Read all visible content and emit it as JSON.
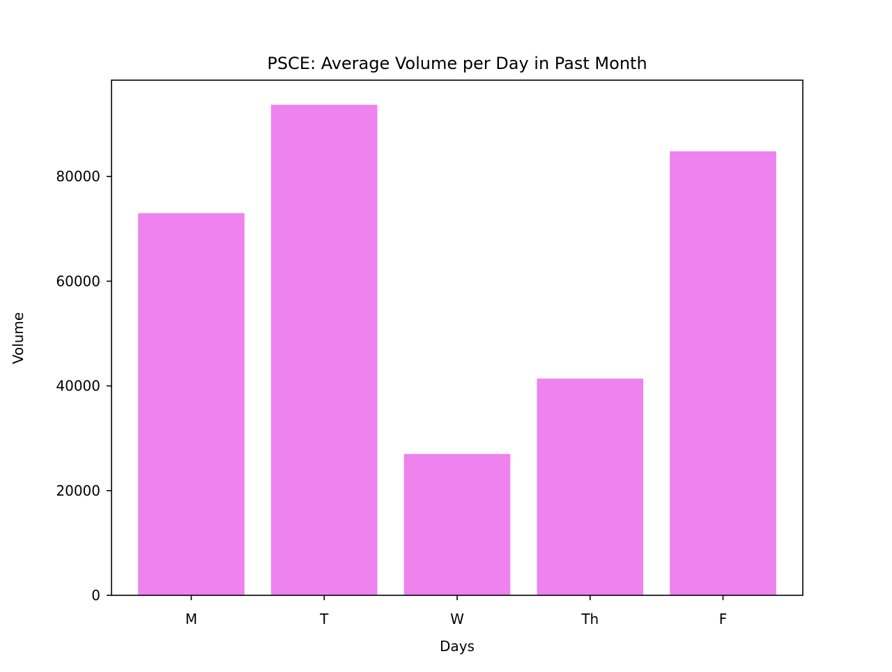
{
  "chart_data": {
    "type": "bar",
    "title": "PSCE: Average Volume per Day in Past Month",
    "xlabel": "Days",
    "ylabel": "Volume",
    "categories": [
      "M",
      "T",
      "W",
      "Th",
      "F"
    ],
    "values": [
      73000,
      93700,
      27000,
      41400,
      84800
    ],
    "ylim": [
      0,
      98400
    ],
    "yticks": [
      0,
      20000,
      40000,
      60000,
      80000
    ],
    "ytick_labels": [
      "0",
      "20000",
      "40000",
      "60000",
      "80000"
    ],
    "bar_color": "#ee82ee",
    "grid": false,
    "legend": "none"
  }
}
